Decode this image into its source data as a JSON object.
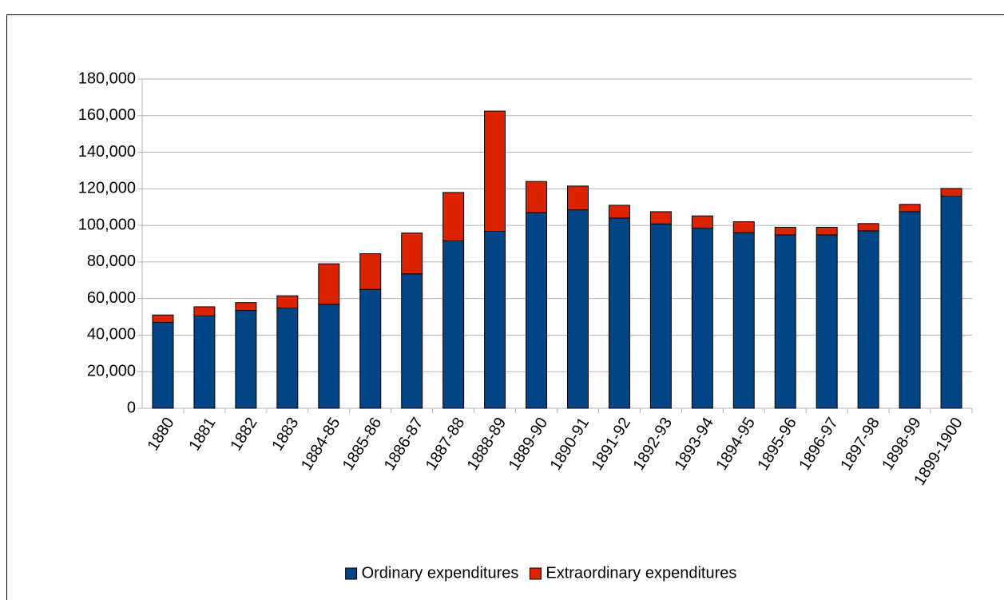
{
  "chart_data": {
    "type": "bar",
    "stacked": true,
    "categories": [
      "1880",
      "1881",
      "1882",
      "1883",
      "1884-85",
      "1885-86",
      "1886-87",
      "1887-88",
      "1888-89",
      "1889-90",
      "1890-91",
      "1891-92",
      "1892-93",
      "1893-94",
      "1894-95",
      "1895-96",
      "1896-97",
      "1897-98",
      "1898-99",
      "1899-1900"
    ],
    "series": [
      {
        "name": "Ordinary expenditures",
        "color": "#004586",
        "values": [
          47000,
          50500,
          53500,
          54800,
          56800,
          65000,
          73500,
          91500,
          96800,
          107000,
          108500,
          104000,
          100800,
          98500,
          96000,
          94800,
          94800,
          97000,
          107500,
          116000
        ]
      },
      {
        "name": "Extraordinary expenditures",
        "color": "#dc2300",
        "values": [
          4000,
          5000,
          4300,
          6700,
          22200,
          19500,
          22300,
          26500,
          65700,
          17000,
          13000,
          7000,
          6700,
          6700,
          6000,
          4200,
          4200,
          4000,
          4000,
          4200
        ]
      }
    ],
    "ylim": [
      0,
      180000
    ],
    "yticks": [
      0,
      {
        "value": 20000,
        "label": "20,000"
      },
      {
        "value": 40000,
        "label": "40,000"
      },
      {
        "value": 60000,
        "label": "60,000"
      },
      {
        "value": 80000,
        "label": "80,000"
      },
      {
        "value": 100000,
        "label": "100,000"
      },
      {
        "value": 120000,
        "label": "120,000"
      },
      {
        "value": 140000,
        "label": "140,000"
      },
      {
        "value": 160000,
        "label": "160,000"
      },
      {
        "value": 180000,
        "label": "180,000"
      }
    ],
    "grid": true,
    "legend": "bottom"
  }
}
